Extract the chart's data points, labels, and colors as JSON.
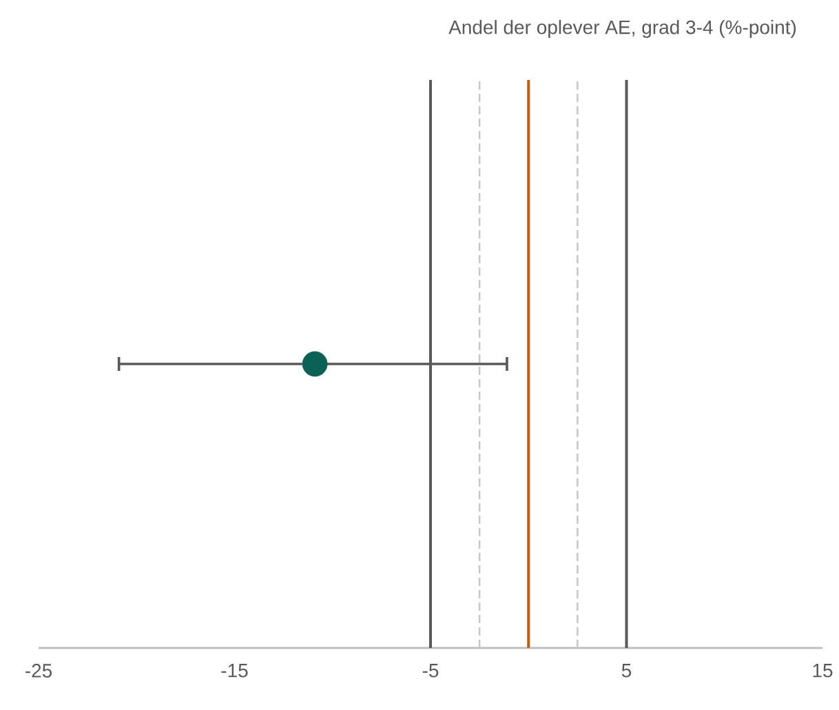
{
  "chart_data": {
    "type": "scatter",
    "orientation": "horizontal",
    "title": "Andel der oplever AE, grad 3-4 (%-point)",
    "categories": [
      null
    ],
    "values": [
      -10.9
    ],
    "color": "#0b6156",
    "errors": [
      [
        -20.9,
        -1.1
      ]
    ],
    "xlim": [
      -25,
      15
    ],
    "xticks": [
      -25,
      -15,
      -5,
      5,
      15
    ],
    "tick_labels": "x",
    "ref_lines": [
      {
        "axis": "x",
        "value": -5,
        "color": "#595959",
        "line_style": "solid"
      },
      {
        "axis": "x",
        "value": -2.5,
        "color": "#c8c8c8",
        "line_style": "dashed"
      },
      {
        "axis": "x",
        "value": 0,
        "color": "#c55a11",
        "line_style": "solid"
      },
      {
        "axis": "x",
        "value": 2.5,
        "color": "#c8c8c8",
        "line_style": "dashed"
      },
      {
        "axis": "x",
        "value": 5,
        "color": "#595959",
        "line_style": "solid"
      }
    ]
  }
}
